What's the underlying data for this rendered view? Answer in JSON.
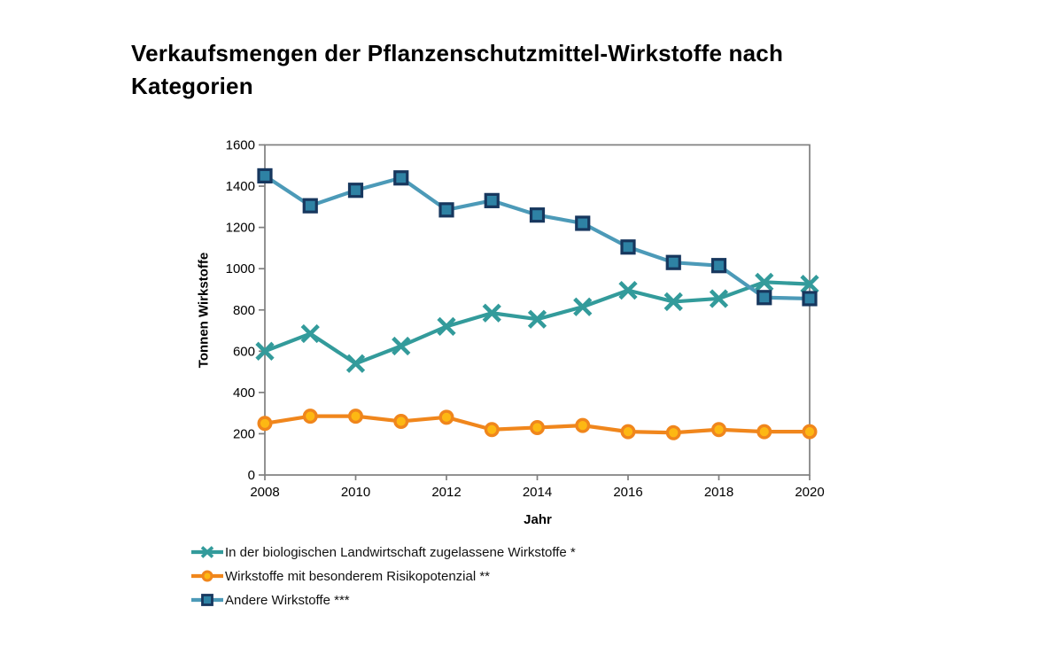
{
  "title": "Verkaufsmengen der Pflanzenschutzmittel-Wirkstoffe nach Kategorien",
  "chart_data": {
    "type": "line",
    "title": "Verkaufsmengen der Pflanzenschutzmittel-Wirkstoffe nach Kategorien",
    "xlabel": "Jahr",
    "ylabel": "Tonnen Wirkstoffe",
    "xlim": [
      2008,
      2020
    ],
    "ylim": [
      0,
      1600
    ],
    "x_ticks": [
      2008,
      2010,
      2012,
      2014,
      2016,
      2018,
      2020
    ],
    "y_ticks": [
      0,
      200,
      400,
      600,
      800,
      1000,
      1200,
      1400,
      1600
    ],
    "grid": false,
    "legend_position": "bottom-left",
    "axis_color": "#7f7f7f",
    "text_color": "#000000",
    "x": [
      2008,
      2009,
      2010,
      2011,
      2012,
      2013,
      2014,
      2015,
      2016,
      2017,
      2018,
      2019,
      2020
    ],
    "series": [
      {
        "name": "In der biologischen Landwirtschaft zugelassene Wirkstoffe *",
        "marker": "x-cross",
        "color": "#339b9b",
        "marker_fill": "#339b9b",
        "marker_border": "#339b9b",
        "values": [
          600,
          685,
          540,
          625,
          720,
          785,
          755,
          815,
          895,
          840,
          855,
          935,
          925
        ]
      },
      {
        "name": "Wirkstoffe mit besonderem Risikopotenzial **",
        "marker": "circle",
        "color": "#f0861c",
        "marker_fill": "#fdb813",
        "marker_border": "#f0861c",
        "values": [
          250,
          285,
          285,
          260,
          280,
          220,
          230,
          240,
          210,
          205,
          220,
          210,
          210
        ]
      },
      {
        "name": "Andere Wirkstoffe ***",
        "marker": "square",
        "color": "#4c9ab8",
        "marker_fill": "#2e82a4",
        "marker_border": "#17375e",
        "values": [
          1450,
          1305,
          1380,
          1440,
          1285,
          1330,
          1260,
          1220,
          1105,
          1030,
          1015,
          860,
          855
        ]
      }
    ]
  }
}
